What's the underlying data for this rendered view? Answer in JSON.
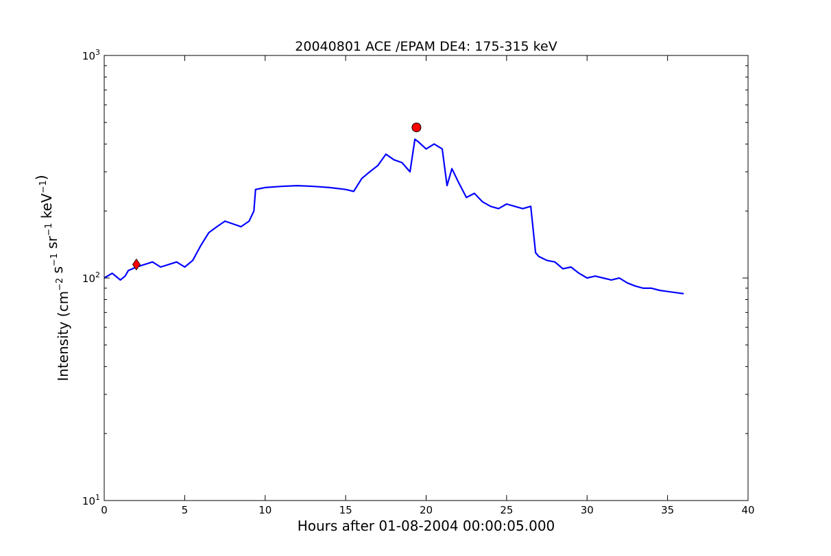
{
  "chart_data": {
    "type": "line",
    "title": "20040801 ACE /EPAM DE4: 175-315 keV",
    "xlabel": "Hours after 01-08-2004 00:00:05.000",
    "ylabel": {
      "base": "Intensity (",
      "parts": [
        {
          "t": "cm",
          "sup": "−2"
        },
        {
          "t": " s",
          "sup": "−1"
        },
        {
          "t": " sr",
          "sup": "−1"
        },
        {
          "t": " keV",
          "sup": "−1"
        }
      ],
      "close": ")"
    },
    "xlim": [
      0,
      40
    ],
    "ylim": [
      10,
      1000
    ],
    "yscale": "log",
    "grid": false,
    "xticks": [
      0,
      5,
      10,
      15,
      20,
      25,
      30,
      35,
      40
    ],
    "yticks": [
      {
        "value": 10,
        "base": "10",
        "exp": "1"
      },
      {
        "value": 100,
        "base": "10",
        "exp": "2"
      },
      {
        "value": 1000,
        "base": "10",
        "exp": "3"
      }
    ],
    "series": [
      {
        "color": "#000000",
        "x": [
          0.0,
          0.5,
          1.0,
          1.3,
          1.5,
          2.0,
          2.5,
          3.0,
          3.5,
          4.0,
          4.5,
          5.0,
          5.5,
          6.0,
          6.5,
          7.0,
          7.5,
          8.0,
          8.5,
          9.0,
          9.3,
          9.4,
          10.0,
          11.0,
          12.0,
          13.0,
          14.0,
          15.0,
          15.5,
          16.0,
          16.5,
          17.0,
          17.5,
          18.0,
          18.5,
          19.0,
          19.3,
          19.5,
          20.0,
          20.5,
          21.0,
          21.3,
          21.6,
          22.0,
          22.5,
          23.0,
          23.5,
          24.0,
          24.5,
          25.0,
          25.5,
          26.0,
          26.5,
          26.8,
          27.0,
          27.5,
          28.0,
          28.5,
          29.0,
          29.5,
          30.0,
          30.5,
          31.0,
          31.5,
          32.0,
          32.5,
          33.0,
          33.5,
          34.0,
          34.5,
          35.0,
          35.5,
          36.0
        ],
        "values": [
          100,
          105,
          98,
          102,
          108,
          112,
          115,
          118,
          112,
          115,
          118,
          112,
          120,
          140,
          160,
          170,
          180,
          175,
          170,
          180,
          200,
          250,
          255,
          258,
          260,
          258,
          255,
          250,
          245,
          280,
          300,
          320,
          360,
          340,
          330,
          300,
          420,
          410,
          380,
          400,
          380,
          260,
          310,
          270,
          230,
          240,
          220,
          210,
          205,
          215,
          210,
          205,
          210,
          130,
          125,
          120,
          118,
          110,
          112,
          105,
          100,
          102,
          100,
          98,
          100,
          95,
          92,
          90,
          90,
          88,
          87,
          86,
          85
        ]
      },
      {
        "color": "#0000ff",
        "x": [
          0.0,
          0.5,
          1.0,
          1.3,
          1.5,
          2.0,
          2.5,
          3.0,
          3.5,
          4.0,
          4.5,
          5.0,
          5.5,
          6.0,
          6.5,
          7.0,
          7.5,
          8.0,
          8.5,
          9.0,
          9.3,
          9.4,
          10.0,
          11.0,
          12.0,
          13.0,
          14.0,
          15.0,
          15.5,
          16.0,
          16.5,
          17.0,
          17.5,
          18.0,
          18.5,
          19.0,
          19.3,
          19.5,
          20.0,
          20.5,
          21.0,
          21.3,
          21.6,
          22.0,
          22.5,
          23.0,
          23.5,
          24.0,
          24.5,
          25.0,
          25.5,
          26.0,
          26.5,
          26.8,
          27.0,
          27.5,
          28.0,
          28.5,
          29.0,
          29.5,
          30.0,
          30.5,
          31.0,
          31.5,
          32.0,
          32.5,
          33.0,
          33.5,
          34.0,
          34.5,
          35.0,
          35.5,
          36.0
        ],
        "values": [
          100,
          105,
          98,
          102,
          108,
          112,
          115,
          118,
          112,
          115,
          118,
          112,
          120,
          140,
          160,
          170,
          180,
          175,
          170,
          180,
          200,
          250,
          255,
          258,
          260,
          258,
          255,
          250,
          245,
          280,
          300,
          320,
          360,
          340,
          330,
          300,
          420,
          410,
          380,
          400,
          380,
          260,
          310,
          270,
          230,
          240,
          220,
          210,
          205,
          215,
          210,
          205,
          210,
          130,
          125,
          120,
          118,
          110,
          112,
          105,
          100,
          102,
          100,
          98,
          100,
          95,
          92,
          90,
          90,
          88,
          87,
          86,
          85
        ]
      }
    ],
    "markers": [
      {
        "shape": "diamond",
        "x": 2.0,
        "y": 115,
        "color": "#ff0000"
      },
      {
        "shape": "circle",
        "x": 19.4,
        "y": 475,
        "color": "#ff0000"
      }
    ]
  }
}
